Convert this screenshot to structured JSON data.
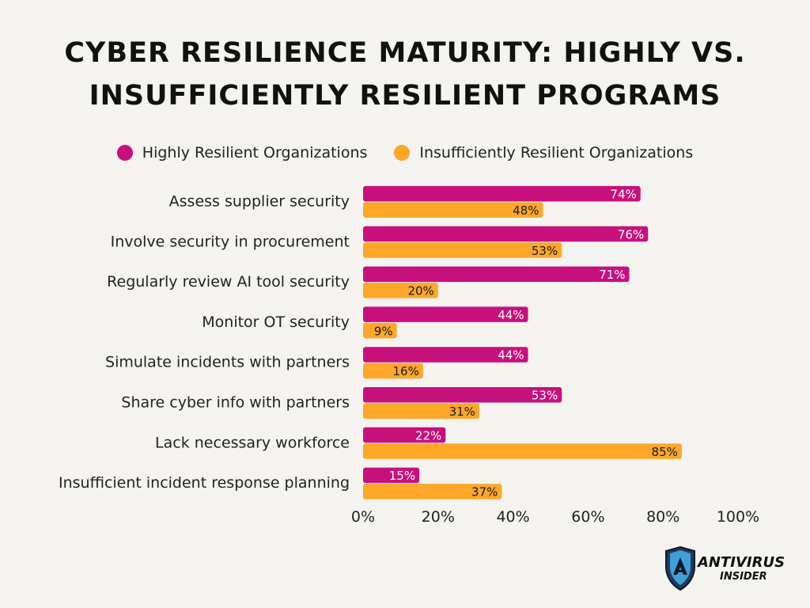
{
  "title_lines": [
    "Cyber Resilience Maturity: Highly vs.",
    "Insufficiently Resilient Programs"
  ],
  "colors": {
    "highly": "#c8107d",
    "insufficient": "#fda729",
    "highly_label_text": "#ffffff",
    "insufficient_label_text": "#1a1a1a"
  },
  "chart_data": {
    "type": "bar",
    "orientation": "horizontal",
    "title": "Cyber Resilience Maturity: Highly vs. Insufficiently Resilient Programs",
    "categories": [
      "Assess supplier security",
      "Involve security in procurement",
      "Regularly review AI tool security",
      "Monitor OT security",
      "Simulate incidents with partners",
      "Share cyber info with partners",
      "Lack necessary workforce",
      "Insufficient incident response planning"
    ],
    "series": [
      {
        "name": "Highly Resilient Organizations",
        "values": [
          74,
          76,
          71,
          44,
          44,
          53,
          22,
          15
        ]
      },
      {
        "name": "Insufficiently Resilient Organizations",
        "values": [
          48,
          53,
          20,
          9,
          16,
          31,
          85,
          37
        ]
      }
    ],
    "xlim": [
      0,
      100
    ],
    "xticks": [
      "0%",
      "20%",
      "40%",
      "60%",
      "80%",
      "100%"
    ],
    "value_suffix": "%",
    "legend_position": "top",
    "grid": false
  },
  "logo": {
    "line1": "ANTIVIRUS",
    "line2": "INSIDER"
  }
}
